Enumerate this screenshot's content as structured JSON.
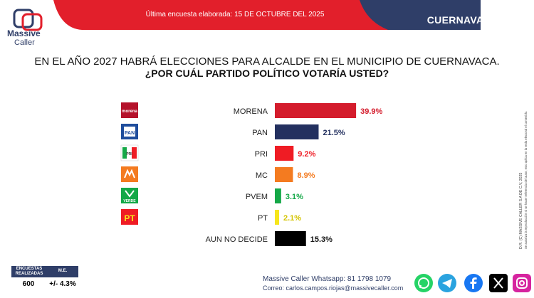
{
  "header": {
    "survey_date": "Última encuesta elaborada: 15 DE OCTUBRE DEL 2025",
    "city": "CUERNAVACA",
    "brand_line1": "Massive",
    "brand_line2": "Caller"
  },
  "question": {
    "line1": "EN EL AÑO 2027 HABRÁ ELECCIONES PARA ALCALDE EN EL MUNICIPIO DE CUERNAVACA.",
    "line2": "¿POR CUÁL PARTIDO POLÍTICO VOTARÍA USTED?"
  },
  "chart_data": {
    "type": "bar",
    "orientation": "horizontal",
    "categories": [
      "MORENA",
      "PAN",
      "PRI",
      "MC",
      "PVEM",
      "PT",
      "AUN NO DECIDE"
    ],
    "values": [
      39.9,
      21.5,
      9.2,
      8.9,
      3.1,
      2.1,
      15.3
    ],
    "value_labels": [
      "39.9%",
      "21.5%",
      "9.2%",
      "8.9%",
      "3.1%",
      "2.1%",
      "15.3%"
    ],
    "colors": [
      "#d41c2c",
      "#23305f",
      "#ef1c24",
      "#f47b20",
      "#14a847",
      "#f6e61c",
      "#000000"
    ],
    "unit": "%"
  },
  "stats": {
    "label_sample": "ENCUESTAS REALIZADAS",
    "label_me": "M.E.",
    "sample": "600",
    "margin_error": "+/- 4.3%"
  },
  "footer": {
    "whatsapp": "Massive Caller Whatsapp: 81 1798 1079",
    "email": "Correo: carlos.campos.riojas@massivecaller.com"
  },
  "side_note": {
    "line1": "D.R. (C) MASSIVE CALLER S.A DE C.V, 2025",
    "line2": "Se autoriza la reproducción si se hacer referencia del autor, esto aplica en la veda electoral el contenido."
  },
  "party_logo_text": {
    "morena": "morena",
    "pan": "PAN",
    "pri": "PRI",
    "pvem": "VERDE",
    "pt": "PT"
  }
}
